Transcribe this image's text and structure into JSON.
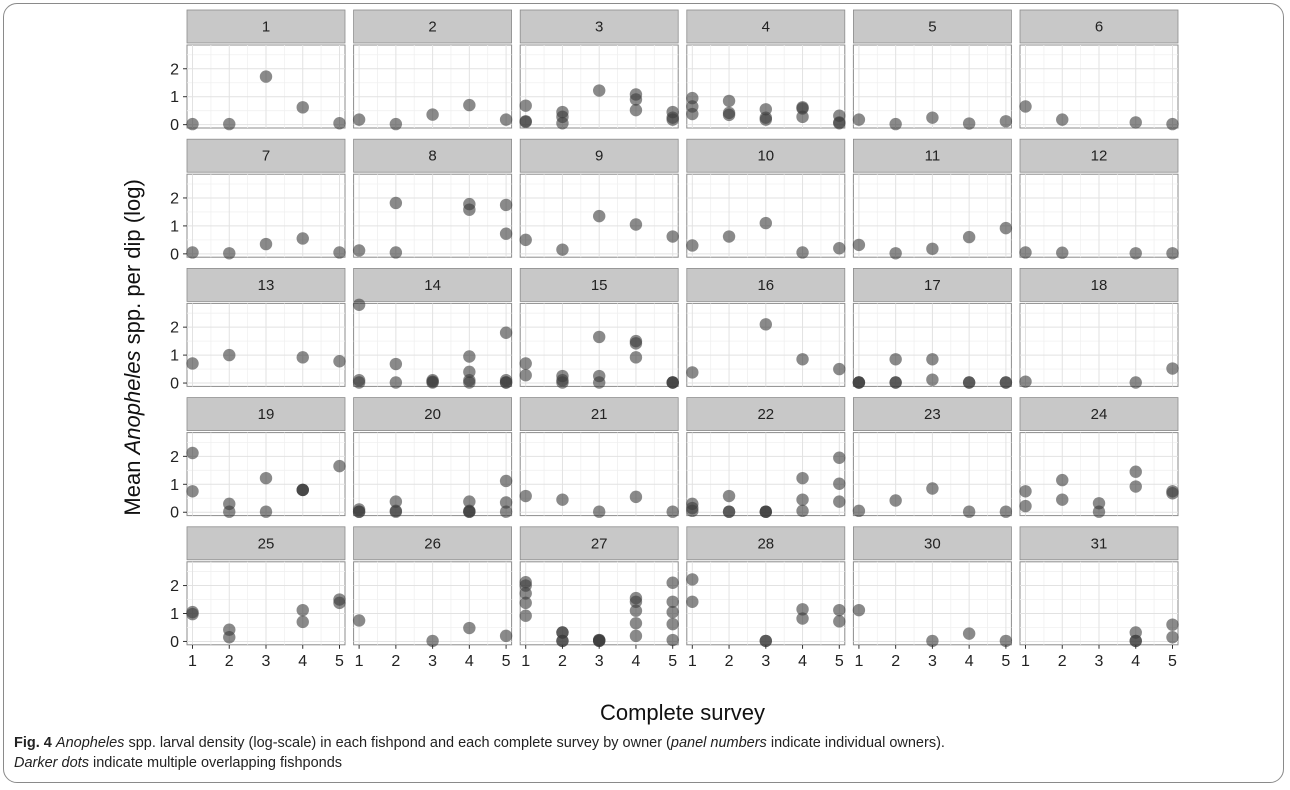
{
  "chart_data": {
    "type": "scatter",
    "facet_layout": "6 columns x 5 rows",
    "xlabel": "Complete survey",
    "ylabel_parts": [
      "Mean ",
      "Anopheles",
      " spp. per dip (log)"
    ],
    "x_ticks": [
      "1",
      "2",
      "3",
      "4",
      "5"
    ],
    "y_ticks": [
      "0",
      "1",
      "2"
    ],
    "xlim": [
      0.85,
      5.15
    ],
    "ylim": [
      -0.12,
      2.85
    ],
    "grid": true,
    "point_color": "#3c3c3c",
    "point_opacity": 0.6,
    "strip_color": "#c8c8c8",
    "panels": [
      {
        "label": "1",
        "points": [
          [
            1,
            0.02
          ],
          [
            2,
            0.02
          ],
          [
            3,
            1.72
          ],
          [
            4,
            0.62
          ],
          [
            5,
            0.05
          ]
        ]
      },
      {
        "label": "2",
        "points": [
          [
            1,
            0.18
          ],
          [
            2,
            0.02
          ],
          [
            3,
            0.36
          ],
          [
            4,
            0.7
          ],
          [
            5,
            0.18
          ]
        ]
      },
      {
        "label": "3",
        "points": [
          [
            1,
            0.68
          ],
          [
            1,
            0.12
          ],
          [
            1,
            0.1
          ],
          [
            2,
            0.45
          ],
          [
            2,
            0.28
          ],
          [
            2,
            0.05
          ],
          [
            3,
            1.22
          ],
          [
            4,
            1.08
          ],
          [
            4,
            0.9
          ],
          [
            4,
            0.52
          ],
          [
            5,
            0.45
          ],
          [
            5,
            0.25
          ],
          [
            5,
            0.18
          ]
        ]
      },
      {
        "label": "4",
        "points": [
          [
            1,
            0.95
          ],
          [
            1,
            0.65
          ],
          [
            1,
            0.38
          ],
          [
            2,
            0.85
          ],
          [
            2,
            0.42
          ],
          [
            2,
            0.35
          ],
          [
            3,
            0.55
          ],
          [
            3,
            0.25
          ],
          [
            3,
            0.18
          ],
          [
            4,
            0.62
          ],
          [
            4,
            0.58
          ],
          [
            4,
            0.28
          ],
          [
            5,
            0.32
          ],
          [
            5,
            0.08
          ],
          [
            5,
            0.05
          ]
        ]
      },
      {
        "label": "5",
        "points": [
          [
            1,
            0.18
          ],
          [
            2,
            0.02
          ],
          [
            3,
            0.25
          ],
          [
            4,
            0.04
          ],
          [
            5,
            0.12
          ]
        ]
      },
      {
        "label": "6",
        "points": [
          [
            1,
            0.65
          ],
          [
            2,
            0.18
          ],
          [
            4,
            0.08
          ],
          [
            5,
            0.02
          ]
        ]
      },
      {
        "label": "7",
        "points": [
          [
            1,
            0.05
          ],
          [
            2,
            0.02
          ],
          [
            3,
            0.35
          ],
          [
            4,
            0.55
          ],
          [
            5,
            0.05
          ]
        ]
      },
      {
        "label": "8",
        "points": [
          [
            1,
            0.12
          ],
          [
            2,
            1.82
          ],
          [
            2,
            0.05
          ],
          [
            4,
            1.78
          ],
          [
            4,
            1.58
          ],
          [
            5,
            1.75
          ],
          [
            5,
            0.72
          ]
        ]
      },
      {
        "label": "9",
        "points": [
          [
            1,
            0.5
          ],
          [
            2,
            0.15
          ],
          [
            3,
            1.35
          ],
          [
            4,
            1.05
          ],
          [
            5,
            0.62
          ]
        ]
      },
      {
        "label": "10",
        "points": [
          [
            1,
            0.3
          ],
          [
            2,
            0.62
          ],
          [
            3,
            1.1
          ],
          [
            4,
            0.05
          ],
          [
            5,
            0.2
          ]
        ]
      },
      {
        "label": "11",
        "points": [
          [
            1,
            0.32
          ],
          [
            2,
            0.02
          ],
          [
            3,
            0.18
          ],
          [
            4,
            0.6
          ],
          [
            5,
            0.92
          ]
        ]
      },
      {
        "label": "12",
        "points": [
          [
            1,
            0.05
          ],
          [
            2,
            0.04
          ],
          [
            4,
            0.02
          ],
          [
            5,
            0.02
          ]
        ]
      },
      {
        "label": "13",
        "points": [
          [
            1,
            0.7
          ],
          [
            2,
            1.0
          ],
          [
            4,
            0.92
          ],
          [
            5,
            0.78
          ]
        ]
      },
      {
        "label": "14",
        "points": [
          [
            1,
            2.8
          ],
          [
            1,
            0.1
          ],
          [
            1,
            0.02
          ],
          [
            2,
            0.68
          ],
          [
            2,
            0.02
          ],
          [
            3,
            0.1
          ],
          [
            3,
            0.05
          ],
          [
            3,
            0.02
          ],
          [
            4,
            0.95
          ],
          [
            4,
            0.4
          ],
          [
            4,
            0.1
          ],
          [
            4,
            0.02
          ],
          [
            5,
            1.8
          ],
          [
            5,
            0.1
          ],
          [
            5,
            0.02
          ],
          [
            5,
            0.02
          ]
        ]
      },
      {
        "label": "15",
        "points": [
          [
            1,
            0.7
          ],
          [
            1,
            0.28
          ],
          [
            2,
            0.25
          ],
          [
            2,
            0.1
          ],
          [
            2,
            0.02
          ],
          [
            3,
            1.65
          ],
          [
            3,
            0.25
          ],
          [
            3,
            0.02
          ],
          [
            4,
            1.5
          ],
          [
            4,
            1.42
          ],
          [
            4,
            0.92
          ],
          [
            5,
            0.02
          ],
          [
            5,
            0.02
          ],
          [
            5,
            0.02
          ]
        ]
      },
      {
        "label": "16",
        "points": [
          [
            1,
            0.38
          ],
          [
            3,
            2.1
          ],
          [
            4,
            0.85
          ],
          [
            5,
            0.5
          ]
        ]
      },
      {
        "label": "17",
        "points": [
          [
            1,
            0.02
          ],
          [
            1,
            0.02
          ],
          [
            1,
            0.02
          ],
          [
            2,
            0.85
          ],
          [
            2,
            0.02
          ],
          [
            2,
            0.02
          ],
          [
            3,
            0.85
          ],
          [
            3,
            0.12
          ],
          [
            4,
            0.02
          ],
          [
            4,
            0.02
          ],
          [
            5,
            0.02
          ],
          [
            5,
            0.02
          ]
        ]
      },
      {
        "label": "18",
        "points": [
          [
            1,
            0.05
          ],
          [
            4,
            0.02
          ],
          [
            5,
            0.52
          ]
        ]
      },
      {
        "label": "19",
        "points": [
          [
            1,
            2.12
          ],
          [
            1,
            0.75
          ],
          [
            2,
            0.3
          ],
          [
            2,
            0.02
          ],
          [
            3,
            1.22
          ],
          [
            3,
            0.02
          ],
          [
            4,
            0.8
          ],
          [
            4,
            0.8
          ],
          [
            4,
            0.8
          ],
          [
            5,
            1.65
          ]
        ]
      },
      {
        "label": "20",
        "points": [
          [
            1,
            0.1
          ],
          [
            1,
            0.02
          ],
          [
            1,
            0.02
          ],
          [
            2,
            0.38
          ],
          [
            2,
            0.05
          ],
          [
            2,
            0.02
          ],
          [
            4,
            0.38
          ],
          [
            4,
            0.05
          ],
          [
            4,
            0.02
          ],
          [
            4,
            0.02
          ],
          [
            5,
            1.12
          ],
          [
            5,
            0.35
          ],
          [
            5,
            0.02
          ]
        ]
      },
      {
        "label": "21",
        "points": [
          [
            1,
            0.58
          ],
          [
            2,
            0.45
          ],
          [
            3,
            0.02
          ],
          [
            4,
            0.55
          ],
          [
            5,
            0.02
          ]
        ]
      },
      {
        "label": "22",
        "points": [
          [
            1,
            0.3
          ],
          [
            1,
            0.15
          ],
          [
            1,
            0.05
          ],
          [
            2,
            0.58
          ],
          [
            2,
            0.02
          ],
          [
            2,
            0.02
          ],
          [
            3,
            0.02
          ],
          [
            3,
            0.02
          ],
          [
            3,
            0.02
          ],
          [
            4,
            1.22
          ],
          [
            4,
            0.45
          ],
          [
            4,
            0.05
          ],
          [
            5,
            1.95
          ],
          [
            5,
            1.02
          ],
          [
            5,
            0.38
          ]
        ]
      },
      {
        "label": "23",
        "points": [
          [
            1,
            0.05
          ],
          [
            2,
            0.42
          ],
          [
            3,
            0.85
          ],
          [
            4,
            0.02
          ],
          [
            5,
            0.02
          ]
        ]
      },
      {
        "label": "24",
        "points": [
          [
            1,
            0.75
          ],
          [
            1,
            0.22
          ],
          [
            2,
            1.15
          ],
          [
            2,
            0.45
          ],
          [
            3,
            0.32
          ],
          [
            3,
            0.02
          ],
          [
            4,
            1.45
          ],
          [
            4,
            0.92
          ],
          [
            5,
            0.75
          ],
          [
            5,
            0.68
          ]
        ]
      },
      {
        "label": "25",
        "points": [
          [
            1,
            1.05
          ],
          [
            1,
            0.98
          ],
          [
            2,
            0.42
          ],
          [
            2,
            0.15
          ],
          [
            4,
            1.12
          ],
          [
            4,
            0.7
          ],
          [
            5,
            1.5
          ],
          [
            5,
            1.38
          ]
        ]
      },
      {
        "label": "26",
        "points": [
          [
            1,
            0.75
          ],
          [
            3,
            0.02
          ],
          [
            4,
            0.48
          ],
          [
            5,
            0.2
          ]
        ]
      },
      {
        "label": "27",
        "points": [
          [
            1,
            2.12
          ],
          [
            1,
            2.0
          ],
          [
            1,
            1.72
          ],
          [
            1,
            1.38
          ],
          [
            1,
            0.92
          ],
          [
            2,
            0.32
          ],
          [
            2,
            0.32
          ],
          [
            2,
            0.02
          ],
          [
            2,
            0.02
          ],
          [
            3,
            0.05
          ],
          [
            3,
            0.05
          ],
          [
            3,
            0.02
          ],
          [
            3,
            0.02
          ],
          [
            4,
            1.55
          ],
          [
            4,
            1.42
          ],
          [
            4,
            1.1
          ],
          [
            4,
            0.65
          ],
          [
            4,
            0.2
          ],
          [
            5,
            2.1
          ],
          [
            5,
            1.42
          ],
          [
            5,
            1.05
          ],
          [
            5,
            0.62
          ],
          [
            5,
            0.05
          ]
        ]
      },
      {
        "label": "28",
        "points": [
          [
            1,
            2.22
          ],
          [
            1,
            1.42
          ],
          [
            3,
            0.02
          ],
          [
            3,
            0.02
          ],
          [
            4,
            1.15
          ],
          [
            4,
            0.82
          ],
          [
            5,
            1.12
          ],
          [
            5,
            0.72
          ]
        ]
      },
      {
        "label": "30",
        "points": [
          [
            1,
            1.12
          ],
          [
            3,
            0.02
          ],
          [
            4,
            0.28
          ],
          [
            5,
            0.02
          ]
        ]
      },
      {
        "label": "31",
        "points": [
          [
            4,
            0.32
          ],
          [
            4,
            0.02
          ],
          [
            4,
            0.02
          ],
          [
            5,
            0.6
          ],
          [
            5,
            0.15
          ]
        ]
      }
    ]
  },
  "caption": {
    "fig_label": "Fig. 4",
    "line1_parts": [
      {
        "text": " ",
        "style": "normal"
      },
      {
        "text": "Anopheles",
        "style": "italic"
      },
      {
        "text": " spp. larval density (log-scale) in each fishpond and each complete survey by owner (",
        "style": "normal"
      },
      {
        "text": "panel numbers",
        "style": "italic"
      },
      {
        "text": " indicate individual owners).",
        "style": "normal"
      }
    ],
    "line2_parts": [
      {
        "text": "Darker dots",
        "style": "italic"
      },
      {
        "text": " indicate multiple overlapping fishponds",
        "style": "normal"
      }
    ]
  }
}
